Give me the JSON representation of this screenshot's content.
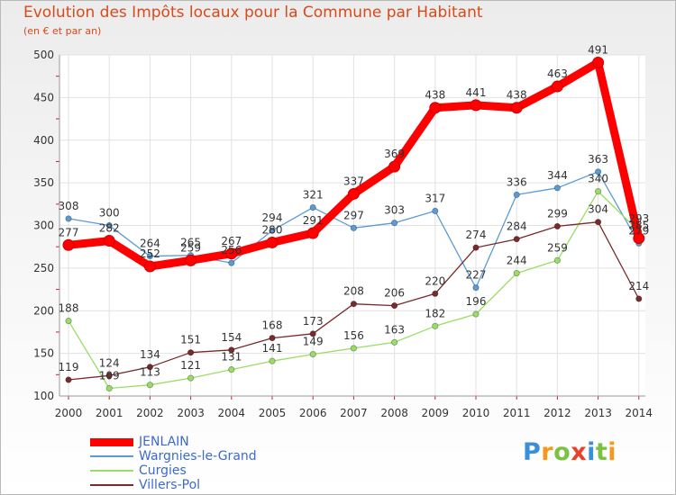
{
  "title": "Evolution des Impôts locaux pour la Commune par Habitant",
  "subtitle": "(en € et par an)",
  "logo": "Proxiti",
  "chart_data": {
    "type": "line",
    "x": [
      "2000",
      "2001",
      "2002",
      "2003",
      "2004",
      "2005",
      "2006",
      "2007",
      "2008",
      "2009",
      "2010",
      "2011",
      "2012",
      "2013",
      "2014"
    ],
    "ylim": [
      100,
      500
    ],
    "yticks": [
      100,
      150,
      200,
      250,
      300,
      350,
      400,
      450,
      500
    ],
    "grid": true,
    "legend_position": "bottom",
    "series": [
      {
        "name": "JENLAIN",
        "color": "#ff0000",
        "values": [
          277,
          282,
          252,
          259,
          267,
          280,
          291,
          337,
          369,
          438,
          441,
          438,
          463,
          491,
          285
        ],
        "labels": [
          "277",
          "282",
          "252",
          "259",
          "267",
          "280",
          "291",
          "337",
          "369",
          "438",
          "441",
          "438",
          "463",
          "491",
          "285"
        ]
      },
      {
        "name": "Wargnies-le-Grand",
        "color": "#5b9bd5",
        "values": [
          308,
          300,
          264,
          265,
          256,
          294,
          321,
          297,
          303,
          317,
          227,
          336,
          344,
          363,
          279
        ],
        "labels": [
          "308",
          "300",
          "264",
          "265",
          "256",
          "294",
          "321",
          "297",
          "303",
          "317",
          "227",
          "336",
          "344",
          "363",
          "279"
        ]
      },
      {
        "name": "Curgies",
        "color": "#99dd66",
        "values": [
          188,
          109,
          113,
          121,
          131,
          141,
          149,
          156,
          163,
          182,
          196,
          244,
          259,
          340,
          293
        ],
        "labels": [
          "188",
          "109",
          "113",
          "121",
          "131",
          "141",
          "149",
          "156",
          "163",
          "182",
          "196",
          "244",
          "259",
          "340",
          "293"
        ]
      },
      {
        "name": "Villers-Pol",
        "color": "#7a2a2a",
        "values": [
          119,
          124,
          134,
          151,
          154,
          168,
          173,
          208,
          206,
          220,
          274,
          284,
          299,
          304,
          214
        ],
        "labels": [
          "119",
          "124",
          "134",
          "151",
          "154",
          "168",
          "173",
          "208",
          "206",
          "220",
          "274",
          "284",
          "299",
          "304",
          "214"
        ]
      }
    ]
  }
}
